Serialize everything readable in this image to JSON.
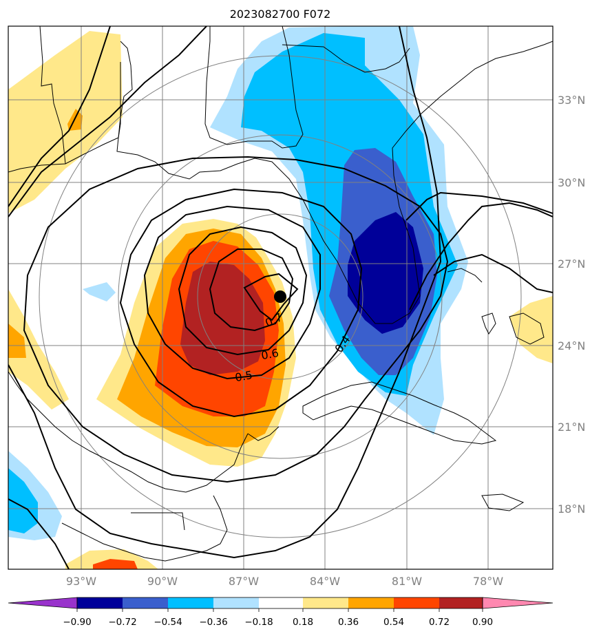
{
  "title": "2023082700 F072",
  "lat_labels": [
    "33°N",
    "30°N",
    "27°N",
    "24°N",
    "21°N",
    "18°N"
  ],
  "lon_labels": [
    "93°W",
    "90°W",
    "87°W",
    "84°W",
    "81°W",
    "78°W"
  ],
  "contour_labels": [
    "0.7",
    "0.6",
    "0.5",
    "0.4"
  ],
  "colorbar": {
    "ticks": [
      "−0.90",
      "−0.72",
      "−0.54",
      "−0.36",
      "−0.18",
      "0.18",
      "0.36",
      "0.54",
      "0.72",
      "0.90"
    ],
    "colors": [
      "#9933cc",
      "#000099",
      "#3a5fcd",
      "#00bfff",
      "#b0e2ff",
      "#ffffff",
      "#ffe88a",
      "#ffa500",
      "#ff4500",
      "#b22222",
      "#ff88b0"
    ]
  },
  "colors": {
    "neg_strong": "#000099",
    "neg_mid": "#3a5fcd",
    "neg_light": "#00bfff",
    "neg_faint": "#b0e2ff",
    "pos_faint": "#ffe88a",
    "pos_light": "#ffa500",
    "pos_mid": "#ff4500",
    "pos_strong": "#b22222",
    "grid": "#808080"
  },
  "storm_marker": "black filled circle (storm center)"
}
